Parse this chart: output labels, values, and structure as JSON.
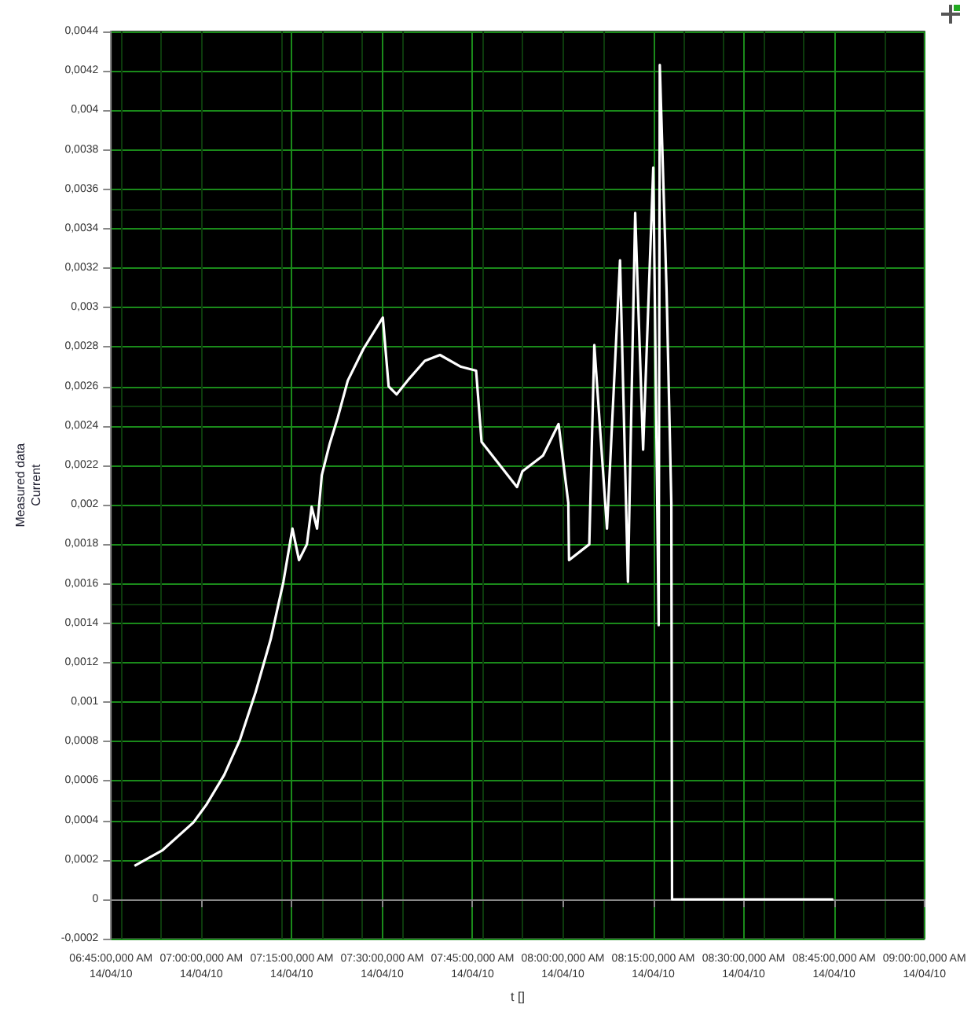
{
  "chart_data": {
    "type": "line",
    "xlabel": "t []",
    "ylabel": "Measured data\nCurrent",
    "xlim": [
      "--04-14T06:45",
      "--04-14T09:00"
    ],
    "ylim": [
      -0.0002,
      0.0044
    ],
    "xticks": [
      {
        "value": "--04-14T06:45",
        "label": "06:45:00,000 AM\n14/04/10"
      },
      {
        "value": "--04-14T07:00",
        "label": "07:00:00,000 AM\n14/04/10"
      },
      {
        "value": "--04-14T07:15",
        "label": "07:15:00,000 AM\n14/04/10"
      },
      {
        "value": "--04-14T07:30",
        "label": "07:30:00,000 AM\n14/04/10"
      },
      {
        "value": "--04-14T07:45",
        "label": "07:45:00,000 AM\n14/04/10"
      },
      {
        "value": "--04-14T08:00",
        "label": "08:00:00,000 AM\n14/04/10"
      },
      {
        "value": "--04-14T08:15",
        "label": "08:15:00,000 AM\n14/04/10"
      },
      {
        "value": "--04-14T08:30",
        "label": "08:30:00,000 AM\n14/04/10"
      },
      {
        "value": "--04-14T08:45",
        "label": "08:45:00,000 AM\n14/04/10"
      },
      {
        "value": "--04-14T09:00",
        "label": "09:00:00,000 AM\n14/04/10"
      }
    ],
    "yticks": [
      {
        "value": -0.0002,
        "label": "-0,0002"
      },
      0,
      {
        "value": 0.0002,
        "label": "0,0002"
      },
      {
        "value": 0.0004,
        "label": "0,0004"
      },
      {
        "value": 0.0006,
        "label": "0,0006"
      },
      {
        "value": 0.0008,
        "label": "0,0008"
      },
      {
        "value": 0.001,
        "label": "0,001"
      },
      {
        "value": 0.0012,
        "label": "0,0012"
      },
      {
        "value": 0.0014,
        "label": "0,0014"
      },
      {
        "value": 0.0016,
        "label": "0,0016"
      },
      {
        "value": 0.0018,
        "label": "0,0018"
      },
      {
        "value": 0.002,
        "label": "0,002"
      },
      {
        "value": 0.0022,
        "label": "0,0022"
      },
      {
        "value": 0.0024,
        "label": "0,0024"
      },
      {
        "value": 0.0026,
        "label": "0,0026"
      },
      {
        "value": 0.0028,
        "label": "0,0028"
      },
      {
        "value": 0.003,
        "label": "0,003"
      },
      {
        "value": 0.0032,
        "label": "0,0032"
      },
      {
        "value": 0.0034,
        "label": "0,0034"
      },
      {
        "value": 0.0036,
        "label": "0,0036"
      },
      {
        "value": 0.0038,
        "label": "0,0038"
      },
      {
        "value": 0.004,
        "label": "0,004"
      },
      {
        "value": 0.0042,
        "label": "0,0042"
      },
      {
        "value": 0.0044,
        "label": "0,0044"
      }
    ],
    "grid": true,
    "marker": "none",
    "line_style": "solid",
    "series": [
      {
        "color": "#ffffff",
        "x": [
          "--04-14T06:48:54",
          "--04-14T06:53:35",
          "--04-14T06:58:41",
          "--04-14T07:00:50",
          "--04-14T07:03:47",
          "--04-14T07:06:25",
          "--04-14T07:09:00",
          "--04-14T07:11:31",
          "--04-14T07:13:37",
          "--04-14T07:15:07",
          "--04-14T07:16:12",
          "--04-14T07:17:31",
          "--04-14T07:18:18",
          "--04-14T07:19:12",
          "--04-14T07:19:59",
          "--04-14T07:21:18",
          "--04-14T07:22:37",
          "--04-14T07:24:18",
          "--04-14T07:26:53",
          "--04-14T07:30:07",
          "--04-14T07:31:05",
          "--04-14T07:32:24",
          "--04-14T07:34:30",
          "--04-14T07:37:05",
          "--04-14T07:39:36",
          "--04-14T07:43:05",
          "--04-14T07:45:36",
          "--04-14T07:46:30",
          "--04-14T07:52:23",
          "--04-14T07:53:17",
          "--04-14T07:56:42",
          "--04-14T07:59:17",
          "--04-14T08:00:54",
          "--04-14T08:01:01",
          "--04-14T08:04:23",
          "--04-14T08:05:13",
          "--04-14T08:07:19",
          "--04-14T08:09:29",
          "--04-14T08:10:48",
          "--04-14T08:12:00",
          "--04-14T08:13:19",
          "--04-14T08:15:00",
          "--04-14T08:15:54",
          "--04-14T08:16:05",
          "--04-14T08:17:13",
          "--04-14T08:18:00",
          "--04-14T08:18:07",
          "--04-14T08:44:53"
        ],
        "values": [
          0.00017,
          0.00025,
          0.00039,
          0.00048,
          0.00063,
          0.00081,
          0.00105,
          0.00132,
          0.00161,
          0.00188,
          0.00172,
          0.0018,
          0.00199,
          0.00188,
          0.00215,
          0.00231,
          0.00244,
          0.00263,
          0.00279,
          0.00295,
          0.0026,
          0.00256,
          0.00264,
          0.00273,
          0.00276,
          0.0027,
          0.00268,
          0.00232,
          0.00209,
          0.00217,
          0.00225,
          0.00241,
          0.00201,
          0.00172,
          0.0018,
          0.00281,
          0.00188,
          0.00324,
          0.00161,
          0.00348,
          0.00228,
          0.00371,
          0.00139,
          0.00423,
          0.00308,
          0.00201,
          0,
          0
        ]
      }
    ]
  }
}
